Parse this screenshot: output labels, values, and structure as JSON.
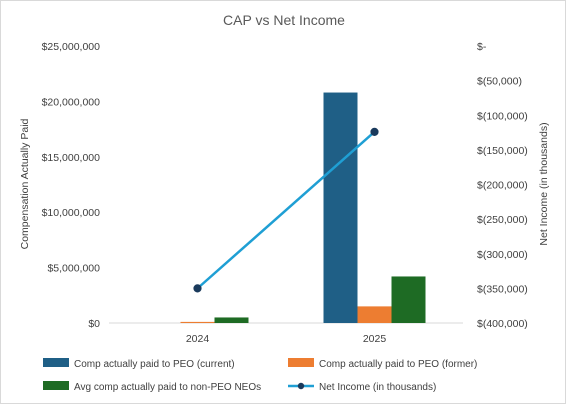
{
  "chart_data": {
    "type": "bar",
    "title": "CAP vs Net Income",
    "categories": [
      "2024",
      "2025"
    ],
    "ylabel": "Compensation Actually Paid",
    "y2label": "Net Income (in thousands)",
    "ylim": [
      0,
      25000000
    ],
    "y2lim": [
      -400000,
      0
    ],
    "yticks": [
      {
        "value": 0,
        "label": "$0"
      },
      {
        "value": 5000000,
        "label": "$5,000,000"
      },
      {
        "value": 10000000,
        "label": "$10,000,000"
      },
      {
        "value": 15000000,
        "label": "$15,000,000"
      },
      {
        "value": 20000000,
        "label": "$20,000,000"
      },
      {
        "value": 25000000,
        "label": "$25,000,000"
      }
    ],
    "y2ticks": [
      {
        "value": 0,
        "label": "$-"
      },
      {
        "value": -50000,
        "label": "$(50,000)"
      },
      {
        "value": -100000,
        "label": "$(100,000)"
      },
      {
        "value": -150000,
        "label": "$(150,000)"
      },
      {
        "value": -200000,
        "label": "$(200,000)"
      },
      {
        "value": -250000,
        "label": "$(250,000)"
      },
      {
        "value": -300000,
        "label": "$(300,000)"
      },
      {
        "value": -350000,
        "label": "$(350,000)"
      },
      {
        "value": -400000,
        "label": "$(400,000)"
      }
    ],
    "series": [
      {
        "name": "Comp actually paid to PEO (current)",
        "kind": "bar",
        "axis": "left",
        "color": "#1f5f86",
        "values": [
          0,
          20800000
        ]
      },
      {
        "name": "Comp actually paid to PEO (former)",
        "kind": "bar",
        "axis": "left",
        "color": "#ed7d31",
        "values": [
          100000,
          1500000
        ]
      },
      {
        "name": "Avg comp actually paid to non-PEO NEOs",
        "kind": "bar",
        "axis": "left",
        "color": "#1e6b24",
        "values": [
          500000,
          4200000
        ]
      },
      {
        "name": "Net Income (in thousands)",
        "kind": "line",
        "axis": "right",
        "color": "#1f9fd4",
        "values": [
          -350000,
          -124000
        ]
      }
    ],
    "grid": false,
    "legend_position": "bottom"
  }
}
